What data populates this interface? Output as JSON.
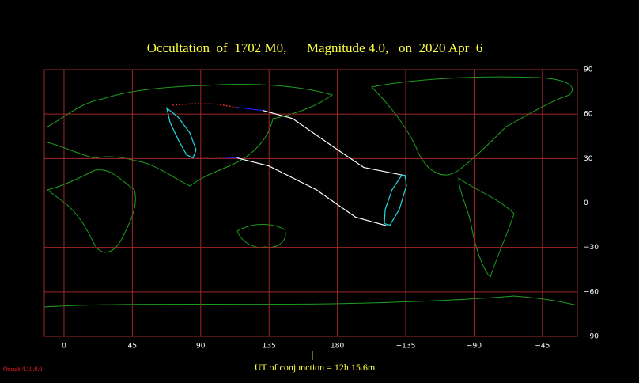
{
  "chart_data": {
    "type": "map",
    "title": "Occultation  of  1702 M0,      Magnitude 4.0,   on  2020 Apr  6",
    "footer": "UT of conjunction = 12h 15.6m",
    "version": "Occult 4.10.0.0",
    "xlim": [
      -13,
      338
    ],
    "ylim": [
      -90,
      90
    ],
    "xticks": [
      0,
      45,
      90,
      135,
      180,
      {
        "value": 225,
        "label": "−135"
      },
      {
        "value": 270,
        "label": "−90"
      },
      {
        "value": 315,
        "label": "−45"
      }
    ],
    "yticks": [
      90,
      60,
      30,
      0,
      {
        "value": -30,
        "label": "−30"
      },
      {
        "value": -60,
        "label": "−60"
      },
      {
        "value": -90,
        "label": "−90"
      }
    ],
    "grid": true,
    "conjunction_lon": 163.5,
    "paths": [
      {
        "color": "#ff3030",
        "dashed": true,
        "lon": [
          71.4,
          85,
          100,
          114
        ],
        "lat": [
          66,
          67,
          66.8,
          64.5
        ]
      },
      {
        "color": "#2020ff",
        "lon": [
          114,
          131
        ],
        "lat": [
          64.5,
          62.4
        ]
      },
      {
        "color": "#ffffff",
        "lon": [
          131,
          150.5,
          176.6,
          197.4,
          223.4
        ],
        "lat": [
          62.4,
          57,
          38.4,
          24,
          18.7
        ]
      },
      {
        "color": "#ff3030",
        "dashed": true,
        "lon": [
          85.4,
          105.2
        ],
        "lat": [
          30.9,
          30.9
        ]
      },
      {
        "color": "#2020ff",
        "lon": [
          105.2,
          114
        ],
        "lat": [
          30.9,
          30.4
        ]
      },
      {
        "color": "#ffffff",
        "lon": [
          114,
          134.9,
          166,
          192,
          213
        ],
        "lat": [
          30.4,
          25,
          9,
          -9.6,
          -15.5
        ]
      },
      {
        "color": "#20d8e0",
        "closed": true,
        "lon": [
          67.7,
          75,
          82.8,
          87,
          84.9,
          80.7,
          75.5,
          69.8
        ],
        "lat": [
          64,
          58.1,
          47.4,
          35.7,
          30.4,
          32.5,
          42.1,
          54.4
        ]
      },
      {
        "color": "#20d8e0",
        "closed": true,
        "lon": [
          224.5,
          225.5,
          220.8,
          214.6,
          210.9,
          211.5,
          216.1,
          222.4
        ],
        "lat": [
          18.7,
          11.7,
          -4.3,
          -14.9,
          -13.9,
          -4.3,
          9.1,
          18.7
        ]
      }
    ]
  }
}
